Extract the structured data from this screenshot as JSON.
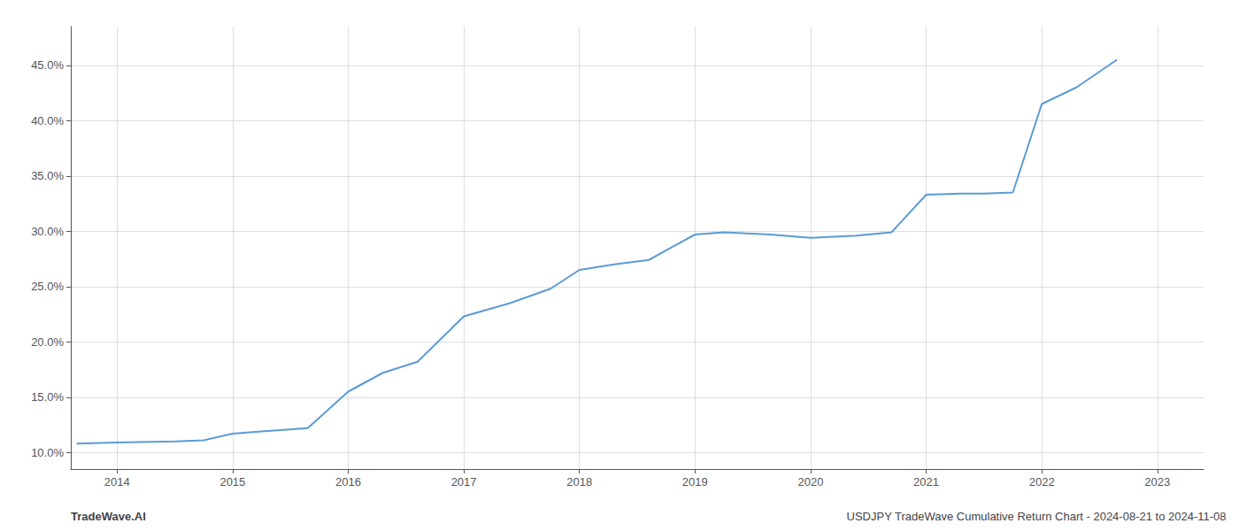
{
  "chart_data": {
    "type": "line",
    "x": [
      2013.65,
      2014.0,
      2014.5,
      2014.75,
      2015.0,
      2015.25,
      2015.65,
      2016.0,
      2016.3,
      2016.6,
      2017.0,
      2017.4,
      2017.75,
      2018.0,
      2018.3,
      2018.6,
      2019.0,
      2019.25,
      2019.65,
      2020.0,
      2020.4,
      2020.7,
      2021.0,
      2021.3,
      2021.5,
      2021.75,
      2022.0,
      2022.3,
      2022.65
    ],
    "values": [
      10.8,
      10.9,
      11.0,
      11.1,
      11.7,
      11.9,
      12.2,
      15.5,
      17.2,
      18.2,
      22.3,
      23.5,
      24.8,
      26.5,
      27.0,
      27.4,
      29.7,
      29.9,
      29.7,
      29.4,
      29.6,
      29.9,
      33.3,
      33.4,
      33.4,
      33.5,
      41.5,
      43.0,
      45.5
    ],
    "color": "#5b9bd5",
    "xlim": [
      2013.6,
      2023.4
    ],
    "xticks": [
      2014,
      2015,
      2016,
      2017,
      2018,
      2019,
      2020,
      2021,
      2022,
      2023
    ],
    "ylim": [
      8.5,
      48.5
    ],
    "yticks": [
      {
        "value": 10.0,
        "label": "10.0%"
      },
      {
        "value": 15.0,
        "label": "15.0%"
      },
      {
        "value": 20.0,
        "label": "20.0%"
      },
      {
        "value": 25.0,
        "label": "25.0%"
      },
      {
        "value": 30.0,
        "label": "30.0%"
      },
      {
        "value": 35.0,
        "label": "35.0%"
      },
      {
        "value": 40.0,
        "label": "40.0%"
      },
      {
        "value": 45.0,
        "label": "45.0%"
      }
    ],
    "grid": true,
    "annotations": [
      "TradeWave.AI",
      "USDJPY TradeWave Cumulative Return Chart - 2024-08-21 to 2024-11-08"
    ]
  }
}
